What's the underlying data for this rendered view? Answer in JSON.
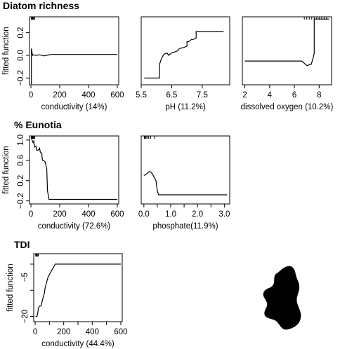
{
  "figure": {
    "sections": [
      {
        "title": "Diatom richness"
      },
      {
        "title": "% Eunotia"
      },
      {
        "title": "TDI"
      }
    ],
    "shape_icon": "black-blob-silhouette"
  },
  "chart_data": [
    {
      "type": "line",
      "section": "Diatom richness",
      "xlabel": "conductivity (14%)",
      "ylabel": "fitted function",
      "xlim": [
        -10,
        610
      ],
      "ylim": [
        -0.26,
        0.34
      ],
      "xticks": [
        0,
        200,
        400,
        600
      ],
      "yticks": [
        -0.2,
        0.0,
        0.2
      ],
      "ytick_labels": [
        "−0.2",
        "0.0",
        "0.2"
      ],
      "rug": [
        3,
        6,
        9,
        12,
        15,
        20,
        25
      ],
      "x": [
        0,
        3,
        3,
        8,
        12,
        20,
        35,
        60,
        90,
        120,
        140,
        600
      ],
      "y": [
        -0.25,
        -0.25,
        0.06,
        0.02,
        0.0,
        0.005,
        0.0,
        0.005,
        -0.005,
        0.003,
        0.008,
        0.008
      ]
    },
    {
      "type": "line",
      "section": "Diatom richness",
      "xlabel": "pH (11.2%)",
      "ylabel": "",
      "xlim": [
        5.5,
        8.4
      ],
      "ylim": [
        -0.26,
        0.34
      ],
      "xticks": [
        5.5,
        6.5,
        7.5
      ],
      "yticks": [],
      "ytick_labels": [],
      "rug": [],
      "x": [
        5.6,
        6.1,
        6.1,
        6.15,
        6.2,
        6.25,
        6.35,
        6.4,
        6.5,
        6.6,
        6.7,
        6.75,
        6.9,
        7.0,
        7.0,
        7.05,
        7.15,
        7.2,
        7.3,
        7.3,
        8.2
      ],
      "y": [
        -0.2,
        -0.2,
        -0.08,
        -0.04,
        -0.01,
        0.01,
        0.02,
        0.0,
        0.02,
        0.03,
        0.04,
        0.06,
        0.07,
        0.08,
        0.12,
        0.12,
        0.14,
        0.14,
        0.15,
        0.21,
        0.21
      ]
    },
    {
      "type": "line",
      "section": "Diatom richness",
      "xlabel": "dissolved oxygen (10.2%)",
      "ylabel": "",
      "xlim": [
        1.8,
        9.0
      ],
      "ylim": [
        -0.26,
        0.34
      ],
      "xticks": [
        2,
        4,
        6,
        8
      ],
      "yticks": [],
      "ytick_labels": [],
      "rug": [
        6.8,
        7.0,
        7.2,
        7.4,
        7.6,
        7.8,
        8.0,
        8.2,
        8.4,
        8.6
      ],
      "x": [
        2.0,
        6.6,
        6.8,
        7.0,
        7.1,
        7.2,
        7.35,
        7.5,
        7.6,
        7.6,
        8.8
      ],
      "y": [
        -0.05,
        -0.05,
        -0.07,
        -0.09,
        -0.09,
        -0.08,
        -0.08,
        -0.03,
        0.02,
        0.32,
        0.32
      ]
    },
    {
      "type": "line",
      "section": "% Eunotia",
      "xlabel": "conductivity (72.6%)",
      "ylabel": "fitted function",
      "xlim": [
        -10,
        610
      ],
      "ylim": [
        -0.26,
        1.08
      ],
      "xticks": [
        0,
        200,
        400,
        600
      ],
      "yticks": [
        -0.2,
        0.2,
        0.6,
        1.0
      ],
      "ytick_labels": [
        "−0.2",
        "0.2",
        "0.6",
        "1.0"
      ],
      "rug": [
        2,
        5,
        8,
        12,
        16,
        20,
        26
      ],
      "x": [
        5,
        15,
        20,
        25,
        35,
        40,
        50,
        60,
        65,
        75,
        80,
        95,
        100,
        110,
        115,
        125,
        600
      ],
      "y": [
        1.02,
        0.95,
        0.98,
        0.86,
        0.88,
        0.8,
        0.8,
        0.84,
        0.76,
        0.74,
        0.6,
        0.58,
        0.56,
        0.42,
        0.0,
        -0.17,
        -0.17
      ]
    },
    {
      "type": "line",
      "section": "% Eunotia",
      "xlabel": "phosphate(11.9%)",
      "ylabel": "",
      "xlim": [
        -0.1,
        3.2
      ],
      "ylim": [
        -0.26,
        1.08
      ],
      "xticks": [
        0.0,
        0.5,
        1.0,
        1.5,
        2.0,
        2.5,
        3.0
      ],
      "xtick_labels": [
        "0.0",
        "1.0",
        "2.0",
        "3.0"
      ],
      "xtick_label_values": [
        0.0,
        1.0,
        2.0,
        3.0
      ],
      "yticks": [],
      "ytick_labels": [],
      "rug": [
        0.02,
        0.05,
        0.08,
        0.12,
        0.18,
        0.25,
        0.4
      ],
      "x": [
        0.0,
        0.1,
        0.2,
        0.28,
        0.35,
        0.45,
        0.5,
        0.55,
        3.1
      ],
      "y": [
        0.3,
        0.33,
        0.38,
        0.36,
        0.3,
        0.2,
        0.0,
        -0.08,
        -0.08
      ]
    },
    {
      "type": "line",
      "section": "TDI",
      "xlabel": "conductivity (44.4%)",
      "ylabel": "fitted function",
      "xlim": [
        -10,
        610
      ],
      "ylim": [
        -22,
        4
      ],
      "xticks": [
        0,
        100,
        200,
        300,
        400,
        500,
        600
      ],
      "xtick_labels": [
        "0",
        "200",
        "400",
        "600"
      ],
      "xtick_label_values": [
        0,
        200,
        400,
        600
      ],
      "yticks": [
        -20,
        -10,
        0
      ],
      "ytick_labels": [
        "−20",
        "−5"
      ],
      "ytick_label_values": [
        -20,
        -5
      ],
      "rug": [
        4,
        8,
        12,
        16,
        22
      ],
      "x": [
        3,
        12,
        18,
        22,
        30,
        40,
        45,
        50,
        55,
        60,
        65,
        70,
        80,
        90,
        100,
        110,
        120,
        130,
        140,
        600
      ],
      "y": [
        -20,
        -20,
        -19,
        -17,
        -16,
        -16,
        -15,
        -14,
        -13,
        -12,
        -11,
        -9,
        -7,
        -5,
        -4,
        -3,
        -2,
        -1,
        0,
        0
      ]
    }
  ]
}
